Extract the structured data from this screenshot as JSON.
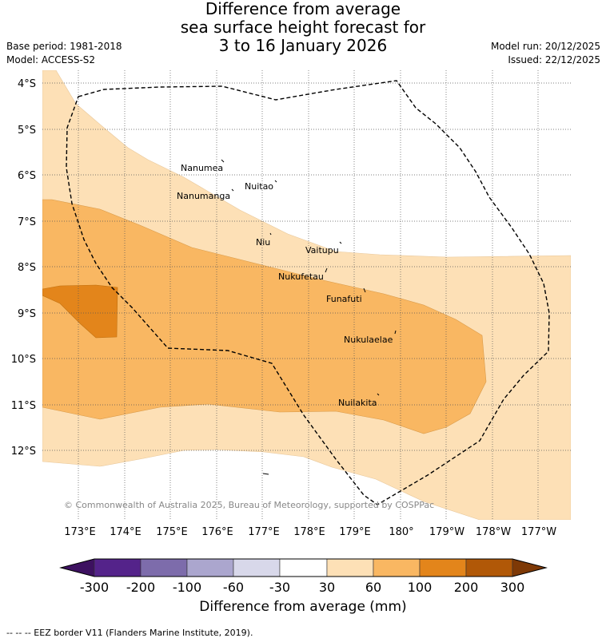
{
  "title": {
    "line1": "Difference from average",
    "line2": "sea surface height forecast for",
    "line3": "3 to 16 January 2026"
  },
  "meta_left": {
    "base_period": "Base period: 1981-2018",
    "model": "Model: ACCESS-S2"
  },
  "meta_right": {
    "model_run": "Model run: 20/12/2025",
    "issued": "Issued: 22/12/2025"
  },
  "map": {
    "lat_labels": [
      "4°S",
      "5°S",
      "6°S",
      "7°S",
      "8°S",
      "9°S",
      "10°S",
      "11°S",
      "12°S"
    ],
    "lon_labels": [
      "173°E",
      "174°E",
      "175°E",
      "176°E",
      "177°E",
      "178°E",
      "179°E",
      "180°",
      "179°W",
      "178°W",
      "177°W"
    ],
    "places": [
      "Nanumea",
      "Nuitao",
      "Nanumanga",
      "Niu",
      "Vaitupu",
      "Nukufetau",
      "Funafuti",
      "Nukulaelae",
      "Nuilakita"
    ],
    "copyright": "© Commonwealth of Australia 2025, Bureau of Meteorology, supported by COSPPac",
    "colors": {
      "band_30_60": "#fde0b6",
      "band_60_100": "#f9b762",
      "band_100_200": "#e3851b",
      "eez_line": "#000000"
    }
  },
  "colorbar": {
    "tick_labels": [
      "-300",
      "-200",
      "-100",
      "-60",
      "-30",
      "30",
      "60",
      "100",
      "200",
      "300"
    ],
    "colors": [
      "#3d1160",
      "#54238a",
      "#7d6cab",
      "#aba6ce",
      "#d8d8ea",
      "#ffffff",
      "#fde0b6",
      "#f9b762",
      "#e3851b",
      "#b15807",
      "#7e3906"
    ],
    "title": "Difference from average (mm)"
  },
  "footer": "--  --  -- EEZ border V11 (Flanders Marine Institute, 2019)."
}
